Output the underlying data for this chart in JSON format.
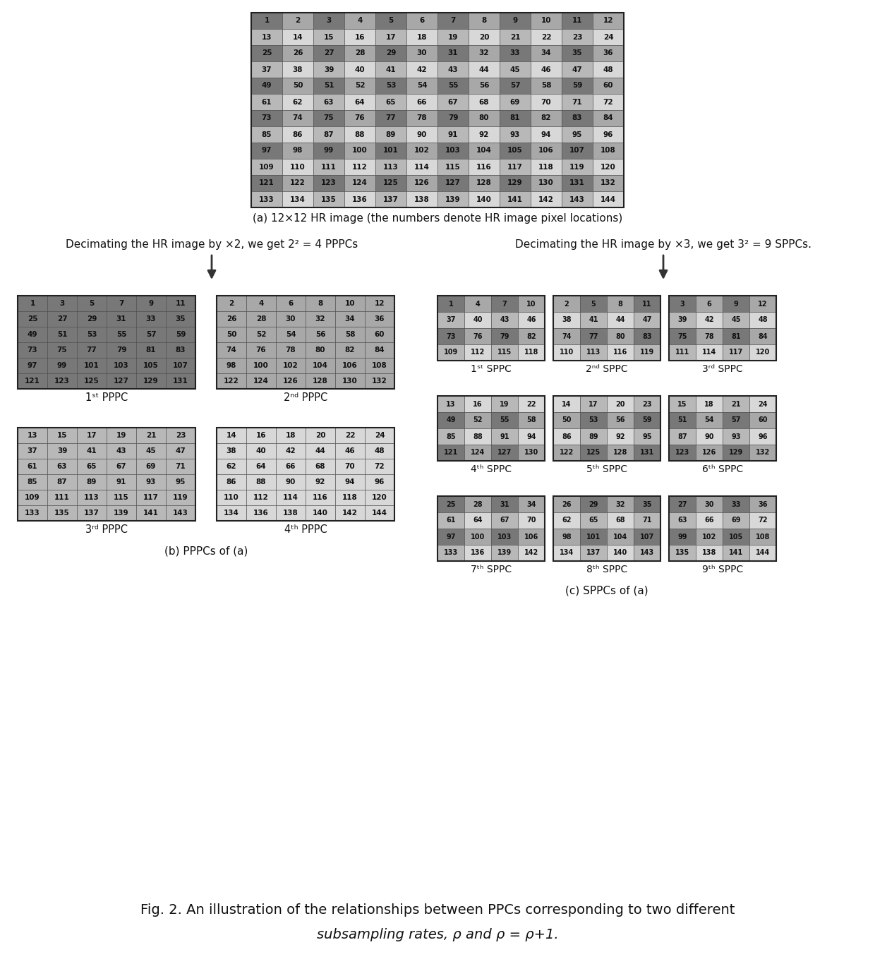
{
  "figure_bg": "#ffffff",
  "caption_a": "(a) 12×12 HR image (the numbers denote HR image pixel locations)",
  "caption_b": "(b) PPPCs of (a)",
  "caption_c": "(c) SPPCs of (a)",
  "label_left": "Decimating the HR image by ×2, we get 2² = 4 PPPCs",
  "label_right": "Decimating the HR image by ×3, we get 3² = 9 SPPCs.",
  "fig_caption_line1": "Fig. 2. An illustration of the relationships between PPCs corresponding to two different",
  "fig_caption_line2": "subsampling rates, ρ and ρ = ρ+1.",
  "pppc_labels": [
    "1ˢᵗ PPPC",
    "2ⁿᵈ PPPC",
    "3ʳᵈ PPPC",
    "4ᵗʰ PPPC"
  ],
  "sppc_labels": [
    "1ˢᵗ SPPC",
    "2ⁿᵈ SPPC",
    "3ʳᵈ SPPC",
    "4ᵗʰ SPPC",
    "5ᵗʰ SPPC",
    "6ᵗʰ SPPC",
    "7ᵗʰ SPPC",
    "8ᵗʰ SPPC",
    "9ᵗʰ SPPC"
  ],
  "hr_numbers": [
    1,
    2,
    3,
    4,
    5,
    6,
    7,
    8,
    9,
    10,
    11,
    12,
    13,
    14,
    15,
    16,
    17,
    18,
    19,
    20,
    21,
    22,
    23,
    24,
    25,
    26,
    27,
    28,
    29,
    30,
    31,
    32,
    33,
    34,
    35,
    36,
    37,
    38,
    39,
    40,
    41,
    42,
    43,
    44,
    45,
    46,
    47,
    48,
    49,
    50,
    51,
    52,
    53,
    54,
    55,
    56,
    57,
    58,
    59,
    60,
    61,
    62,
    63,
    64,
    65,
    66,
    67,
    68,
    69,
    70,
    71,
    72,
    73,
    74,
    75,
    76,
    77,
    78,
    79,
    80,
    81,
    82,
    83,
    84,
    85,
    86,
    87,
    88,
    89,
    90,
    91,
    92,
    93,
    94,
    95,
    96,
    97,
    98,
    99,
    100,
    101,
    102,
    103,
    104,
    105,
    106,
    107,
    108,
    109,
    110,
    111,
    112,
    113,
    114,
    115,
    116,
    117,
    118,
    119,
    120,
    121,
    122,
    123,
    124,
    125,
    126,
    127,
    128,
    129,
    130,
    131,
    132,
    133,
    134,
    135,
    136,
    137,
    138,
    139,
    140,
    141,
    142,
    143,
    144
  ],
  "pppc_data": [
    [
      1,
      3,
      5,
      7,
      9,
      11,
      25,
      27,
      29,
      31,
      33,
      35,
      49,
      51,
      53,
      55,
      57,
      59,
      73,
      75,
      77,
      79,
      81,
      83,
      97,
      99,
      101,
      103,
      105,
      107,
      121,
      123,
      125,
      127,
      129,
      131
    ],
    [
      2,
      4,
      6,
      8,
      10,
      12,
      26,
      28,
      30,
      32,
      34,
      36,
      50,
      52,
      54,
      56,
      58,
      60,
      74,
      76,
      78,
      80,
      82,
      84,
      98,
      100,
      102,
      104,
      106,
      108,
      122,
      124,
      126,
      128,
      130,
      132
    ],
    [
      13,
      15,
      17,
      19,
      21,
      23,
      37,
      39,
      41,
      43,
      45,
      47,
      61,
      63,
      65,
      67,
      69,
      71,
      85,
      87,
      89,
      91,
      93,
      95,
      109,
      111,
      113,
      115,
      117,
      119,
      133,
      135,
      137,
      139,
      141,
      143
    ],
    [
      14,
      16,
      18,
      20,
      22,
      24,
      38,
      40,
      42,
      44,
      46,
      48,
      62,
      64,
      66,
      68,
      70,
      72,
      86,
      88,
      90,
      92,
      94,
      96,
      110,
      112,
      114,
      116,
      118,
      120,
      134,
      136,
      138,
      140,
      142,
      144
    ]
  ],
  "sppc_data": [
    [
      1,
      4,
      7,
      10,
      37,
      40,
      43,
      46,
      73,
      76,
      79,
      82,
      109,
      112,
      115,
      118
    ],
    [
      2,
      5,
      8,
      11,
      38,
      41,
      44,
      47,
      74,
      77,
      80,
      83,
      110,
      113,
      116,
      119
    ],
    [
      3,
      6,
      9,
      12,
      39,
      42,
      45,
      48,
      75,
      78,
      81,
      84,
      111,
      114,
      117,
      120
    ],
    [
      13,
      16,
      19,
      22,
      49,
      52,
      55,
      58,
      85,
      88,
      91,
      94,
      121,
      124,
      127,
      130
    ],
    [
      14,
      17,
      20,
      23,
      50,
      53,
      56,
      59,
      86,
      89,
      92,
      95,
      122,
      125,
      128,
      131
    ],
    [
      15,
      18,
      21,
      24,
      51,
      54,
      57,
      60,
      87,
      90,
      93,
      96,
      123,
      126,
      129,
      132
    ],
    [
      25,
      28,
      31,
      34,
      61,
      64,
      67,
      70,
      97,
      100,
      103,
      106,
      133,
      136,
      139,
      142
    ],
    [
      26,
      29,
      32,
      35,
      62,
      65,
      68,
      71,
      98,
      101,
      104,
      107,
      134,
      137,
      140,
      143
    ],
    [
      27,
      30,
      33,
      36,
      63,
      66,
      69,
      72,
      99,
      102,
      105,
      108,
      135,
      138,
      141,
      144
    ]
  ]
}
